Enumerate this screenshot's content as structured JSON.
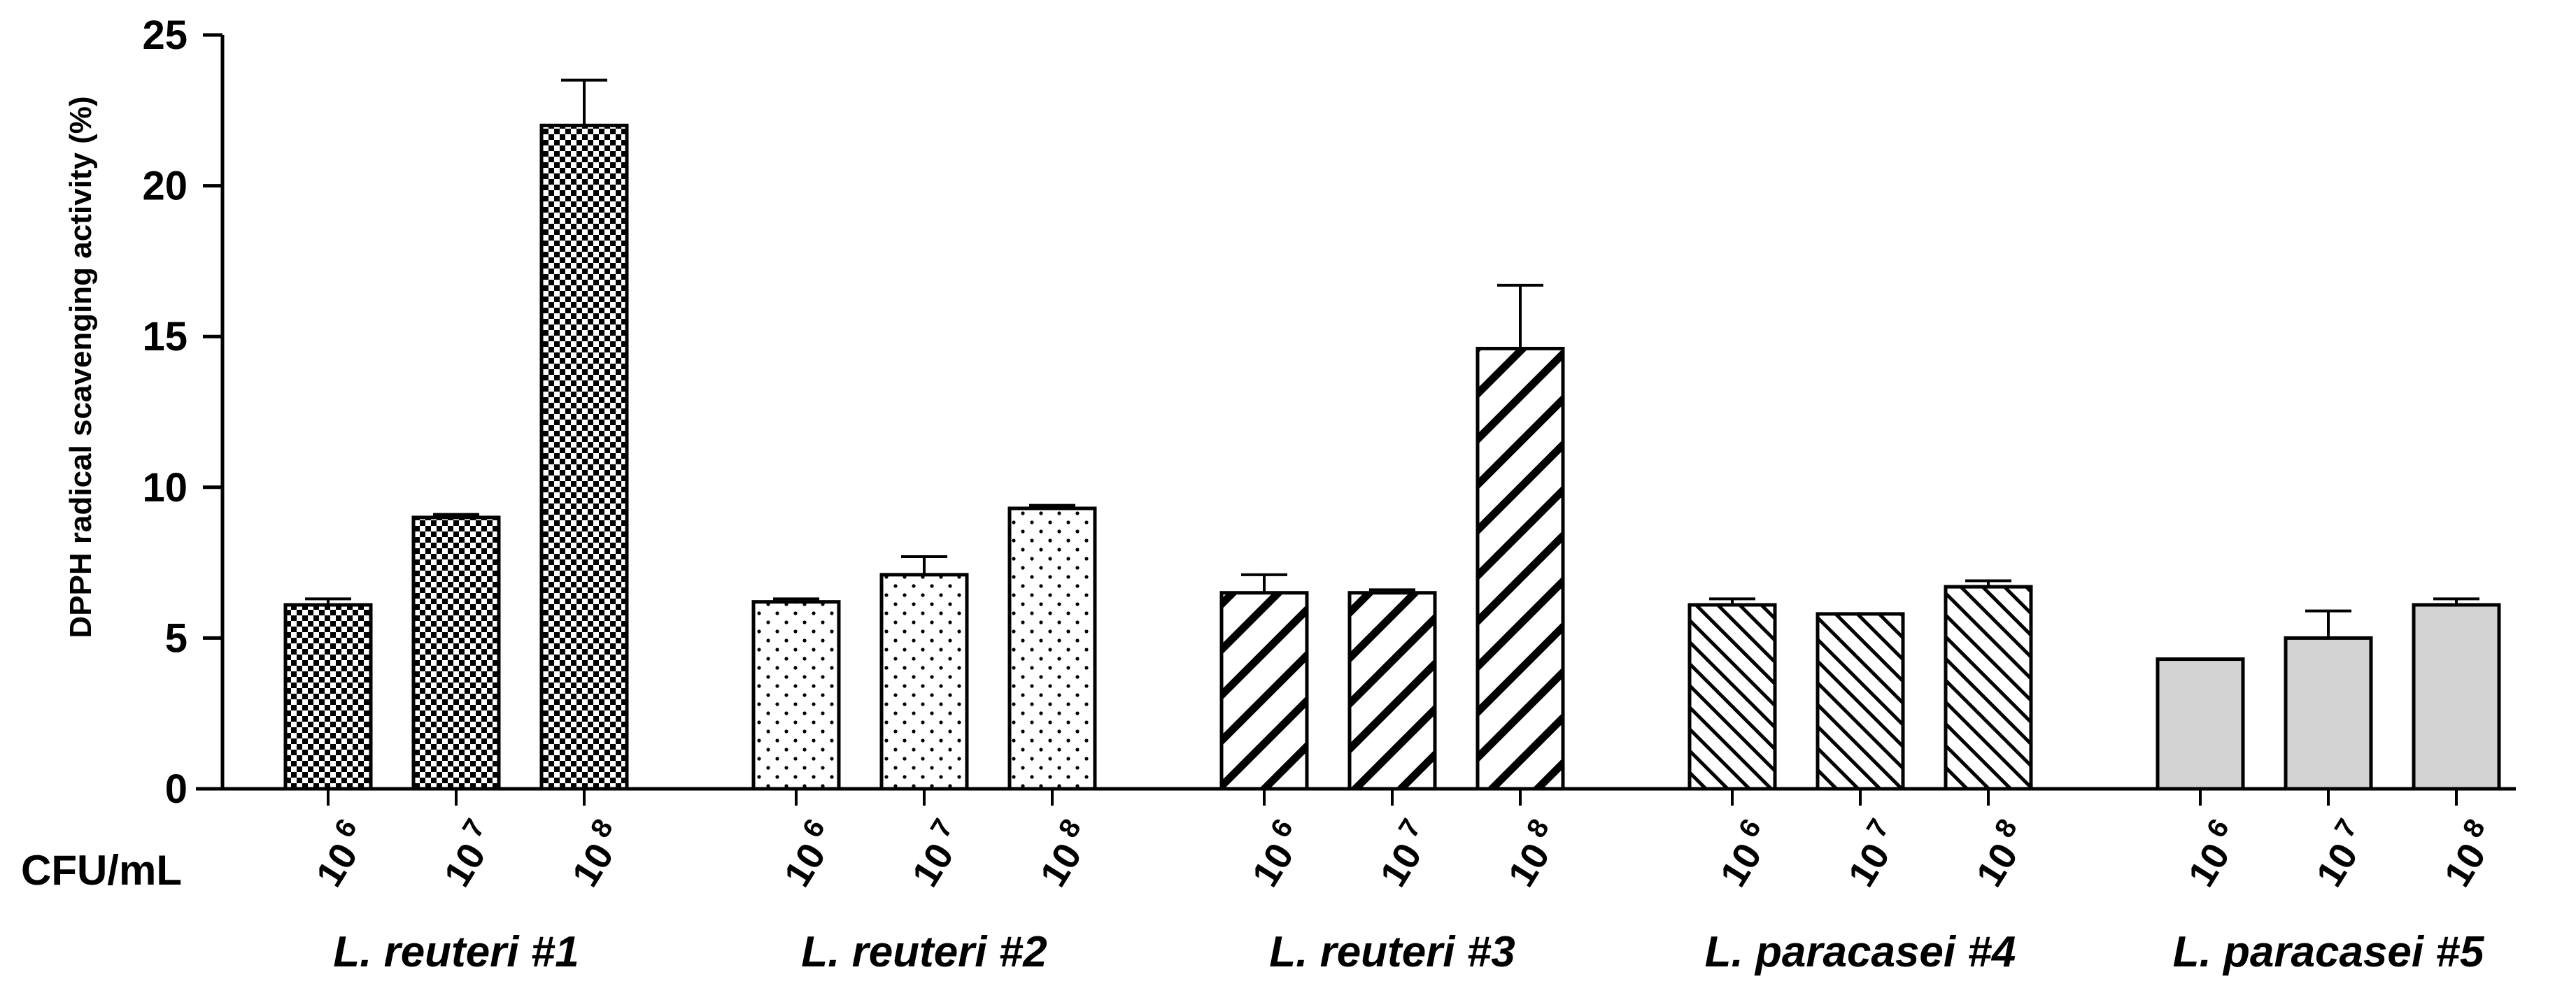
{
  "chart_data": {
    "type": "bar",
    "ylabel": "DPPH radical scavenging activity (%)",
    "ylim": [
      0,
      25
    ],
    "yticks": [
      0,
      5,
      10,
      15,
      20,
      25
    ],
    "row_label": "CFU/mL",
    "grid": false,
    "categories": [
      "10^6",
      "10^7",
      "10^8"
    ],
    "category_labels": [
      {
        "base": "10",
        "exp": "6"
      },
      {
        "base": "10",
        "exp": "7"
      },
      {
        "base": "10",
        "exp": "8"
      }
    ],
    "groups": [
      {
        "name": "L. reuteri #1",
        "pattern": "checker",
        "values": [
          6.1,
          9.0,
          22.0
        ],
        "errors": [
          0.2,
          0.1,
          1.5
        ]
      },
      {
        "name": "L. reuteri #2",
        "pattern": "dots",
        "values": [
          6.2,
          7.1,
          9.3
        ],
        "errors": [
          0.1,
          0.6,
          0.1
        ]
      },
      {
        "name": "L. reuteri #3",
        "pattern": "thick-diagonal",
        "values": [
          6.5,
          6.5,
          14.6
        ],
        "errors": [
          0.6,
          0.1,
          2.1
        ]
      },
      {
        "name": "L. paracasei #4",
        "pattern": "thin-diagonal",
        "values": [
          6.1,
          5.8,
          6.7
        ],
        "errors": [
          0.2,
          0.0,
          0.2
        ]
      },
      {
        "name": "L. paracasei #5",
        "pattern": "grey",
        "values": [
          4.3,
          5.0,
          6.1
        ],
        "errors": [
          0.0,
          0.9,
          0.2
        ]
      }
    ],
    "colors": {
      "bar_stroke": "#000000",
      "grey_fill": "#d3d3d3",
      "axis": "#000000"
    }
  }
}
